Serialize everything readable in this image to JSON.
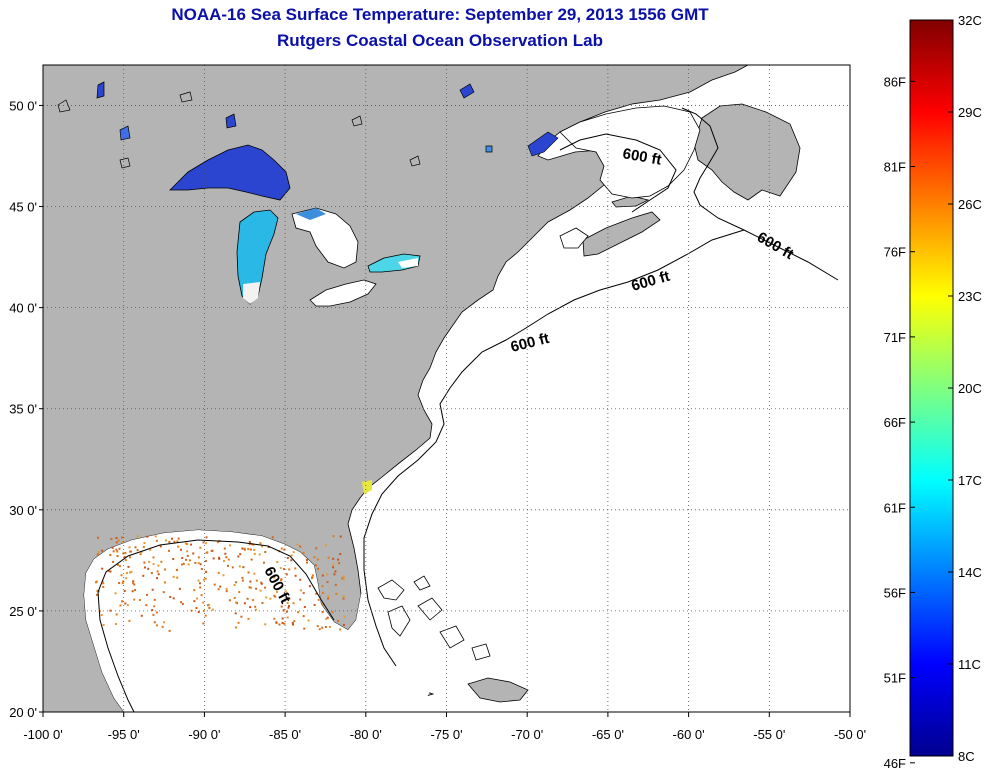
{
  "header": {
    "title": "NOAA-16 Sea Surface Temperature:  September 29, 2013 1556 GMT",
    "subtitle": "Rutgers Coastal Ocean Observation Lab"
  },
  "map": {
    "lon_range": [
      -100,
      -50
    ],
    "lat_range": [
      20,
      52
    ],
    "lon_ticks": [
      {
        "value": -100,
        "label": "-100 0'"
      },
      {
        "value": -95,
        "label": "-95 0'"
      },
      {
        "value": -90,
        "label": "-90 0'"
      },
      {
        "value": -85,
        "label": "-85 0'"
      },
      {
        "value": -80,
        "label": "-80 0'"
      },
      {
        "value": -75,
        "label": "-75 0'"
      },
      {
        "value": -70,
        "label": "-70 0'"
      },
      {
        "value": -65,
        "label": "-65 0'"
      },
      {
        "value": -60,
        "label": "-60 0'"
      },
      {
        "value": -55,
        "label": "-55 0'"
      },
      {
        "value": -50,
        "label": "-50 0'"
      }
    ],
    "lat_ticks": [
      {
        "value": 50,
        "label": "50 0'"
      },
      {
        "value": 45,
        "label": "45 0'"
      },
      {
        "value": 40,
        "label": "40 0'"
      },
      {
        "value": 35,
        "label": "35 0'"
      },
      {
        "value": 30,
        "label": "30 0'"
      },
      {
        "value": 25,
        "label": "25 0'"
      },
      {
        "value": 20,
        "label": "20 0'"
      }
    ],
    "grid": true,
    "contour_label": "600 ft",
    "colors": {
      "land": "#b4b4b4",
      "water_no_data": "#ffffff",
      "gulf_data": "#d2691e",
      "lake_superior": "#2b45d0",
      "lake_michigan": "#2ab8e6"
    }
  },
  "colorbar": {
    "min_c": 8,
    "max_c": 32,
    "celsius_labels": [
      "32C",
      "29C",
      "26C",
      "23C",
      "20C",
      "17C",
      "14C",
      "11C",
      "8C"
    ],
    "fahrenheit_labels": [
      "86F",
      "81F",
      "76F",
      "71F",
      "66F",
      "61F",
      "56F",
      "51F",
      "46F"
    ],
    "colormap": "jet"
  }
}
